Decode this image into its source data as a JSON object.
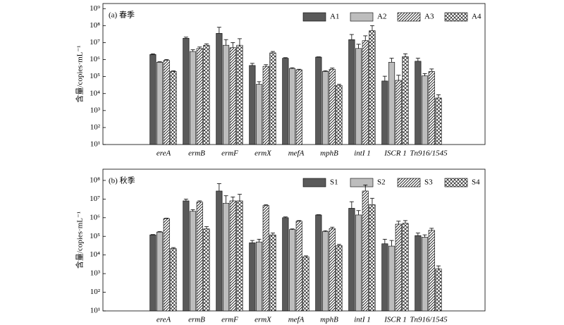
{
  "chart_data": [
    {
      "type": "bar",
      "title": "(a) 春季",
      "y_label": "含量/copies·mL⁻¹",
      "log_scale": true,
      "categories": [
        "ereA",
        "ermB",
        "ermF",
        "ermX",
        "mefA",
        "mphB",
        "intI 1",
        "ISCR 1",
        "Tn916/1545"
      ],
      "ylim": [
        10,
        2000000000
      ],
      "yticks": [
        {
          "value": 10,
          "label": "10¹"
        },
        {
          "value": 100,
          "label": "10²"
        },
        {
          "value": 1000,
          "label": "10³"
        },
        {
          "value": 10000,
          "label": "10⁴"
        },
        {
          "value": 100000,
          "label": "10⁵"
        },
        {
          "value": 1000000,
          "label": "10⁶"
        },
        {
          "value": 10000000,
          "label": "10⁷"
        },
        {
          "value": 100000000,
          "label": "10⁸"
        },
        {
          "value": 1000000000,
          "label": "10⁹"
        }
      ],
      "series": [
        {
          "name": "A1",
          "color": "#5a5a5a",
          "hatch": "none",
          "values": [
            2000000,
            18000000,
            35000000,
            450000,
            1200000,
            1400000,
            15000000,
            55000,
            800000
          ],
          "errors": [
            200000,
            3000000,
            45000000,
            150000,
            100000,
            50000,
            15000000,
            50000,
            400000
          ]
        },
        {
          "name": "A2",
          "color": "#bdbdbd",
          "hatch": "none",
          "values": [
            700000,
            3000000,
            7000000,
            35000,
            300000,
            200000,
            4500000,
            700000,
            110000
          ],
          "errors": [
            50000,
            800000,
            8000000,
            15000,
            30000,
            20000,
            3500000,
            500000,
            40000
          ]
        },
        {
          "name": "A3",
          "color": "#ffffff",
          "hatch": "diagonal",
          "values": [
            900000,
            4500000,
            5000000,
            400000,
            250000,
            270000,
            13000000,
            60000,
            200000
          ],
          "errors": [
            100000,
            1000000,
            5000000,
            100000,
            20000,
            50000,
            12000000,
            60000,
            80000
          ]
        },
        {
          "name": "A4",
          "color": "#ffffff",
          "hatch": "cross",
          "values": [
            200000,
            7000000,
            7000000,
            2500000,
            null,
            30000,
            50000000,
            1500000,
            5500
          ],
          "errors": [
            20000,
            1500000,
            10000000,
            500000,
            null,
            5000,
            50000000,
            700000,
            3000
          ]
        }
      ]
    },
    {
      "type": "bar",
      "title": "(b) 秋季",
      "y_label": "含量/copies·mL⁻¹",
      "log_scale": true,
      "categories": [
        "ereA",
        "ermB",
        "ermF",
        "ermX",
        "mefA",
        "mphB",
        "intI 1",
        "ISCR 1",
        "Tn916/1545"
      ],
      "ylim": [
        10,
        400000000
      ],
      "yticks": [
        {
          "value": 10,
          "label": "10¹"
        },
        {
          "value": 100,
          "label": "10²"
        },
        {
          "value": 1000,
          "label": "10³"
        },
        {
          "value": 10000,
          "label": "10⁴"
        },
        {
          "value": 100000,
          "label": "10⁵"
        },
        {
          "value": 1000000,
          "label": "10⁶"
        },
        {
          "value": 10000000,
          "label": "10⁷"
        },
        {
          "value": 100000000,
          "label": "10⁸"
        }
      ],
      "series": [
        {
          "name": "S1",
          "color": "#5a5a5a",
          "hatch": "none",
          "values": [
            120000,
            8000000,
            27000000,
            45000,
            1000000,
            1400000,
            3200000,
            40000,
            110000
          ],
          "errors": [
            5000,
            2000000,
            40000000,
            15000,
            100000,
            50000,
            4000000,
            30000,
            40000
          ]
        },
        {
          "name": "S2",
          "color": "#bdbdbd",
          "hatch": "none",
          "values": [
            170000,
            2200000,
            6000000,
            50000,
            230000,
            180000,
            1400000,
            30000,
            90000
          ],
          "errors": [
            10000,
            500000,
            9000000,
            20000,
            20000,
            20000,
            1000000,
            30000,
            30000
          ]
        },
        {
          "name": "S3",
          "color": "#ffffff",
          "hatch": "diagonal",
          "values": [
            900000,
            7000000,
            8000000,
            4500000,
            650000,
            260000,
            27000000,
            450000,
            210000
          ],
          "errors": [
            50000,
            1000000,
            5000000,
            500000,
            50000,
            50000,
            30000000,
            200000,
            60000
          ]
        },
        {
          "name": "S4",
          "color": "#ffffff",
          "hatch": "cross",
          "values": [
            22000,
            250000,
            8000000,
            120000,
            8000,
            32000,
            5000000,
            500000,
            1800
          ],
          "errors": [
            3000,
            80000,
            10000000,
            30000,
            1000,
            5000,
            6000000,
            200000,
            800
          ]
        }
      ]
    }
  ]
}
